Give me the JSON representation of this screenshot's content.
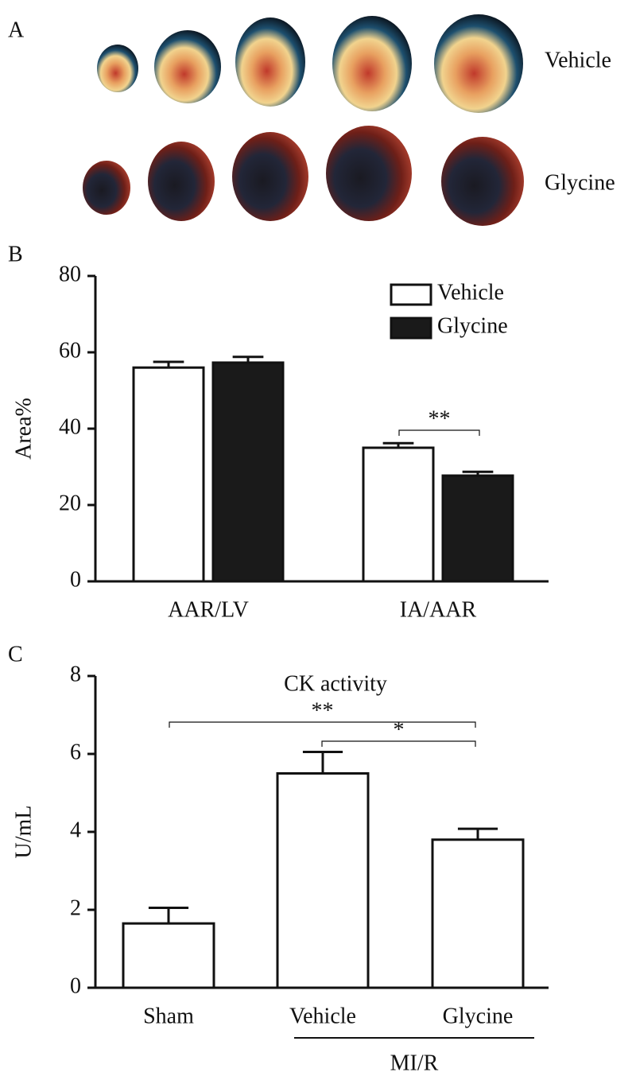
{
  "panel_a": {
    "label": "A",
    "rows": [
      "Vehicle",
      "Glycine"
    ]
  },
  "chart_data": [
    {
      "type": "bar",
      "panel_label": "B",
      "ylabel": "Area%",
      "categories": [
        "AAR/LV",
        "IA/AAR"
      ],
      "series": [
        {
          "name": "Vehicle",
          "color": "#ffffff",
          "values": [
            56,
            35
          ],
          "errors": [
            1.5,
            1.2
          ]
        },
        {
          "name": "Glycine",
          "color": "#1a1a1a",
          "values": [
            57.3,
            27.7
          ],
          "errors": [
            1.5,
            1.0
          ]
        }
      ],
      "ylim": [
        0,
        80
      ],
      "yticks": [
        0,
        20,
        40,
        60,
        80
      ],
      "legend": "upper right",
      "annotations": [
        "**"
      ]
    },
    {
      "type": "bar",
      "panel_label": "C",
      "title": "CK activity",
      "ylabel": "U/mL",
      "categories": [
        "Sham",
        "Vehicle",
        "Glycine"
      ],
      "values": [
        1.65,
        5.5,
        3.8
      ],
      "errors": [
        0.4,
        0.55,
        0.28
      ],
      "color": "#ffffff",
      "ylim": [
        0,
        8
      ],
      "yticks": [
        0,
        2,
        4,
        6,
        8
      ],
      "group_label": "MI/R",
      "annotations": [
        "**",
        "*"
      ]
    }
  ]
}
